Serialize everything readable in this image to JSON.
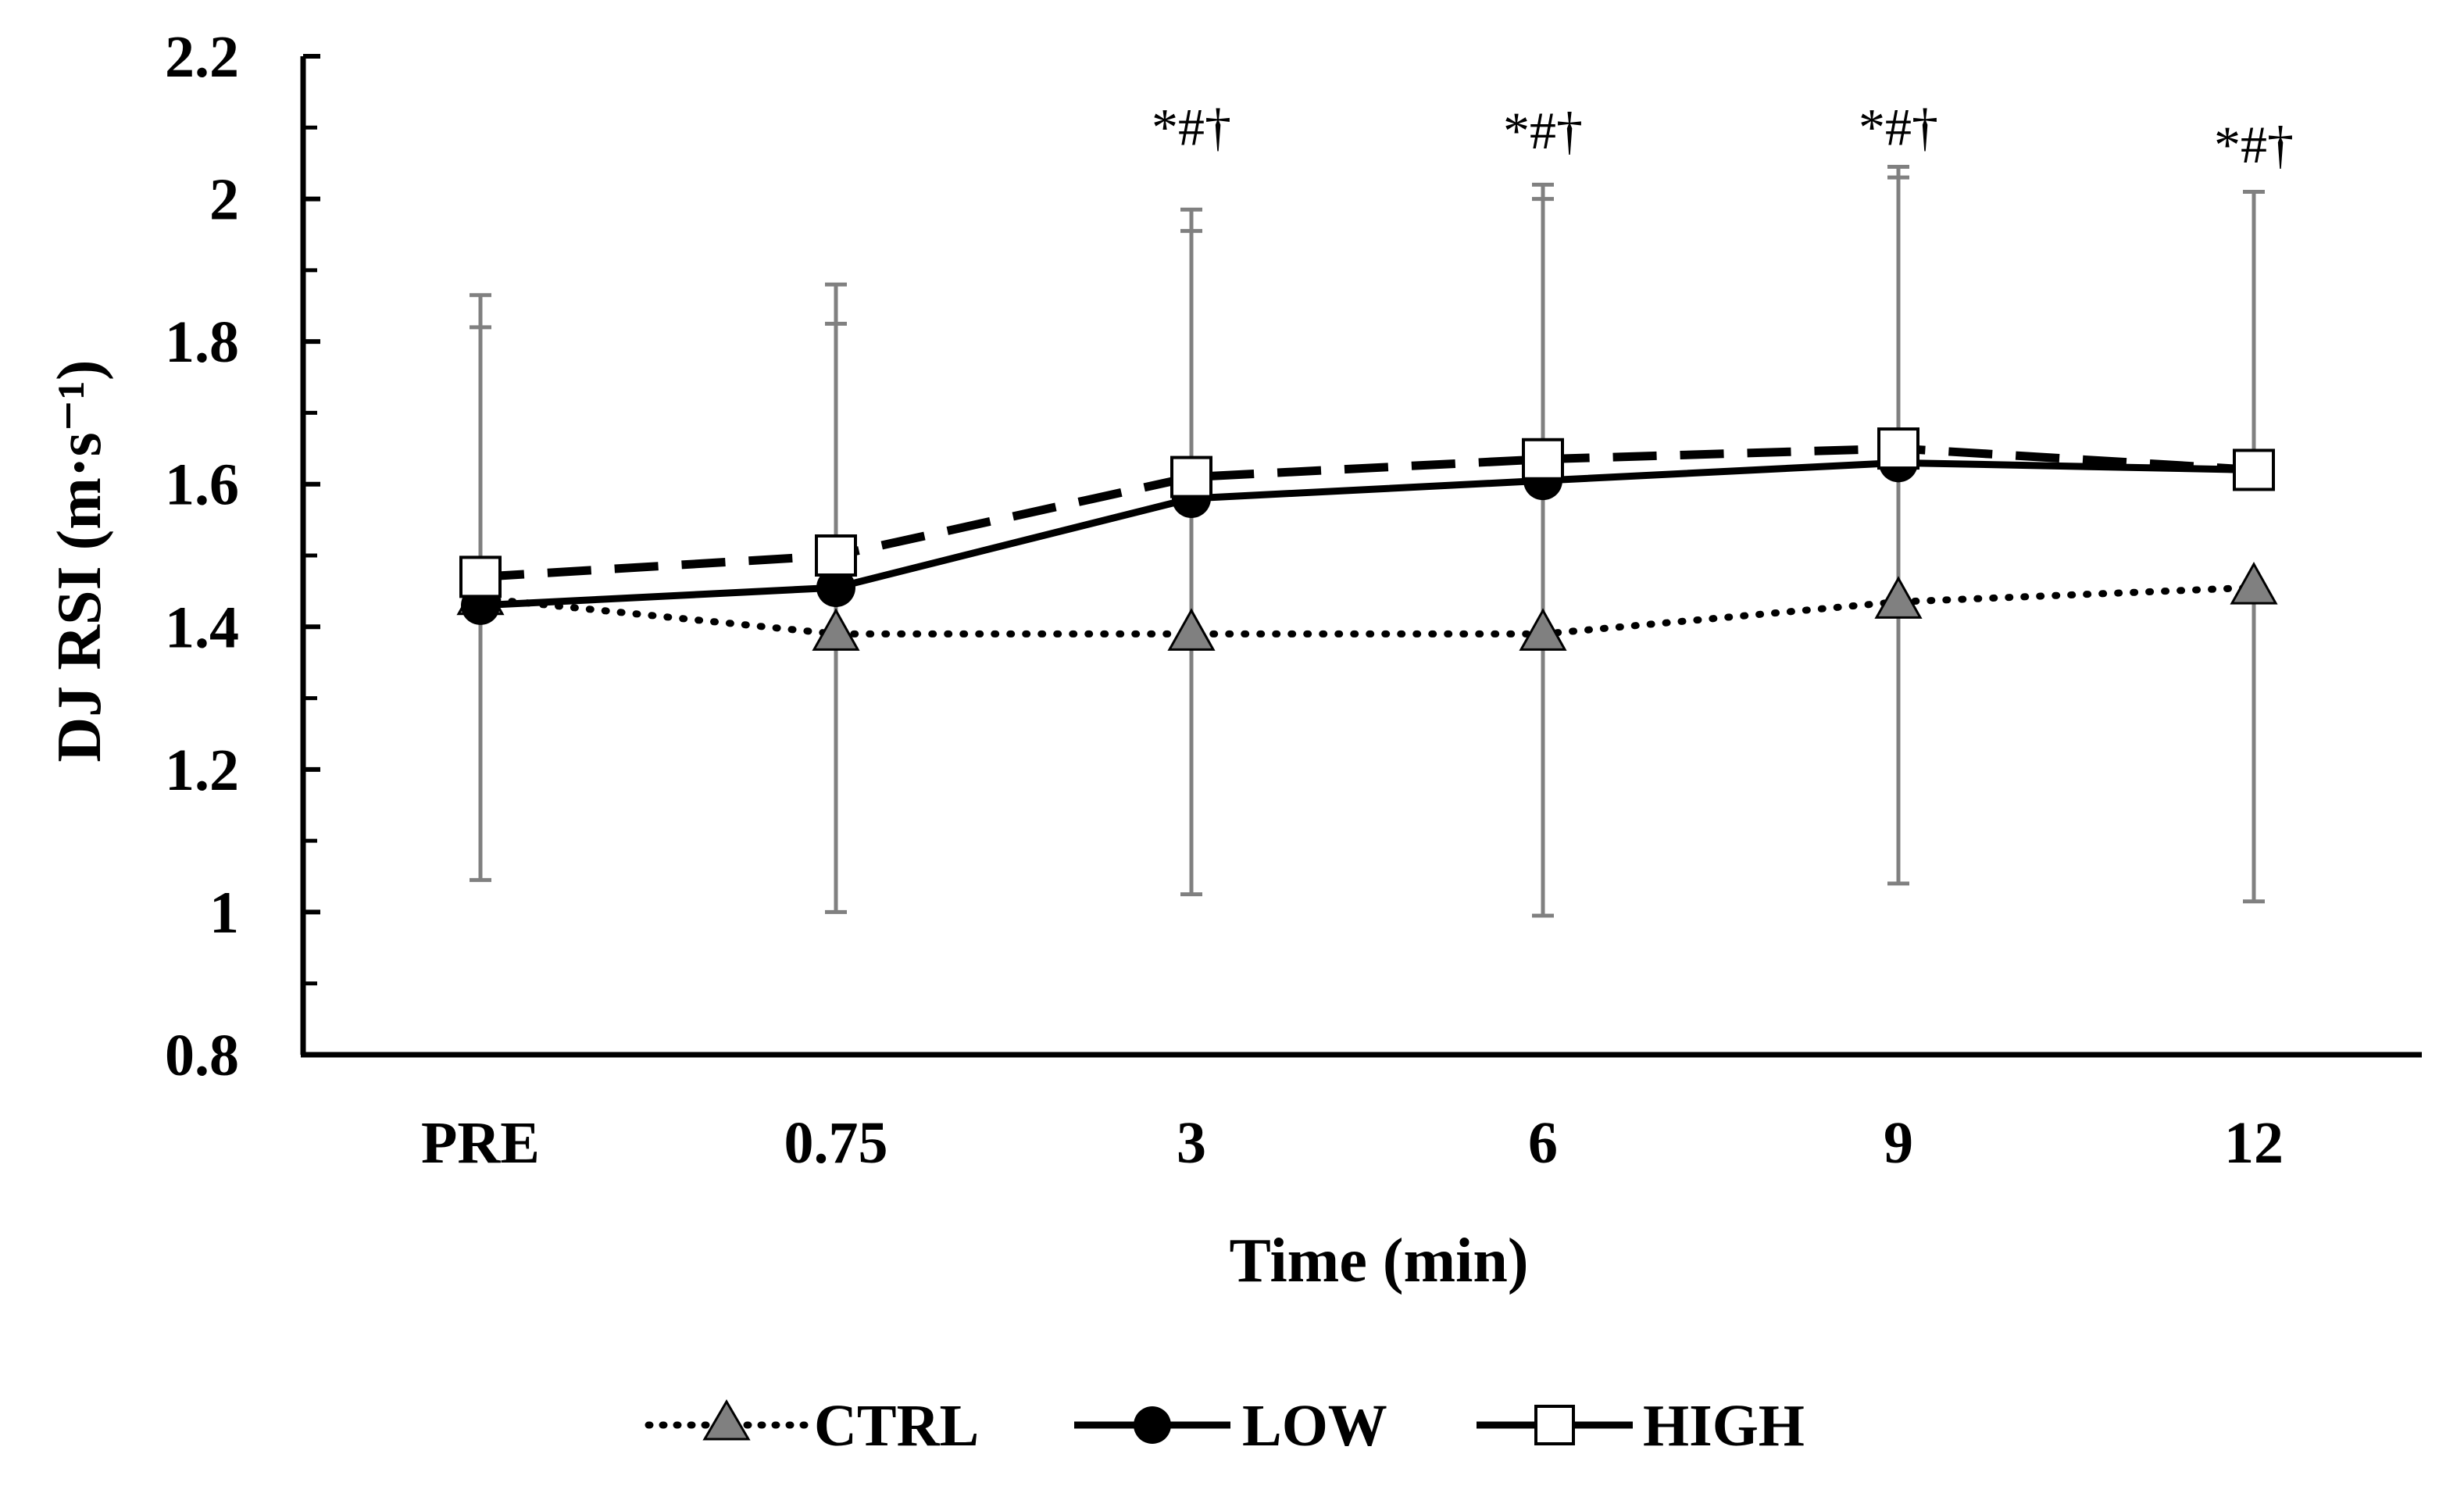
{
  "chart_data": {
    "type": "line",
    "title": "",
    "xlabel": "Time (min)",
    "ylabel": "DJ RSI (m·s⁻¹)",
    "categories": [
      "PRE",
      "0.75",
      "3",
      "6",
      "9",
      "12"
    ],
    "ylim": [
      0.8,
      2.2
    ],
    "yticks": [
      0.8,
      1,
      1.2,
      1.4,
      1.6,
      1.8,
      2,
      2.2
    ],
    "ytick_labels": [
      "0.8",
      "1",
      "1.2",
      "1.4",
      "1.6",
      "1.8",
      "2",
      "2.2"
    ],
    "grid": false,
    "legend_position": "bottom",
    "series": [
      {
        "name": "CTRL",
        "line_style": "dotted",
        "marker": "triangle",
        "marker_color": "#808080",
        "values": [
          1.44,
          1.39,
          1.39,
          1.39,
          1.435,
          1.455
        ],
        "error_upper": [
          1.82,
          1.825,
          1.955,
          2.0,
          2.03,
          null
        ],
        "error_lower": [
          1.045,
          1.0,
          1.025,
          0.995,
          1.04,
          1.015
        ]
      },
      {
        "name": "LOW",
        "line_style": "solid",
        "marker": "circle",
        "marker_color": "#000000",
        "values": [
          1.43,
          1.455,
          1.58,
          1.605,
          1.63,
          1.62
        ],
        "error_upper": [
          null,
          null,
          null,
          null,
          null,
          null
        ],
        "error_lower": [
          null,
          null,
          null,
          null,
          null,
          null
        ]
      },
      {
        "name": "HIGH",
        "line_style": "dashed",
        "marker": "square",
        "marker_color": "#ffffff",
        "values": [
          1.47,
          1.5,
          1.61,
          1.635,
          1.65,
          1.62
        ],
        "error_upper": [
          1.865,
          1.88,
          1.985,
          2.02,
          2.045,
          2.01
        ],
        "error_lower": [
          null,
          null,
          null,
          null,
          null,
          null
        ]
      }
    ],
    "annotations": [
      {
        "category": "3",
        "text": "*#†",
        "y": 2.1
      },
      {
        "category": "6",
        "text": "*#†",
        "y": 2.095
      },
      {
        "category": "9",
        "text": "*#†",
        "y": 2.1
      },
      {
        "category": "12",
        "text": "*#†",
        "y": 2.075
      }
    ],
    "colors": {
      "axis": "#000000",
      "error_bar": "#808080",
      "line": "#000000"
    }
  }
}
